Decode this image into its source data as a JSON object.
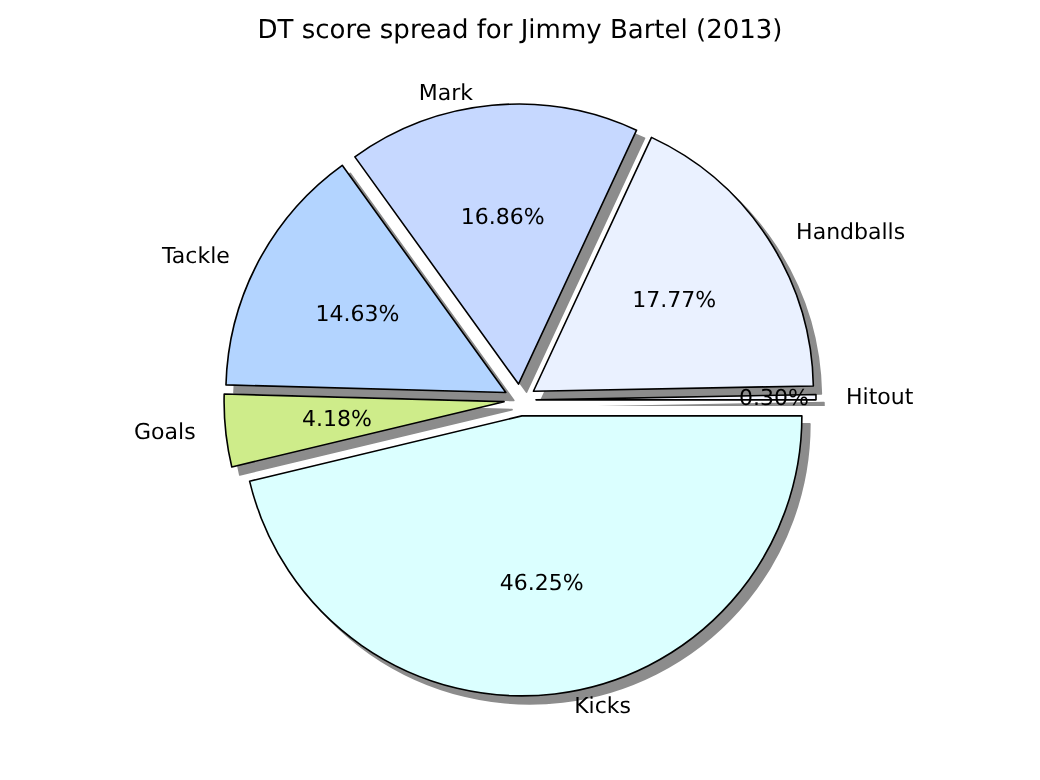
{
  "chart_data": {
    "type": "pie",
    "title": "DT score spread for Jimmy Bartel (2013)",
    "categories": [
      "Hitout",
      "Handballs",
      "Mark",
      "Tackle",
      "Goals",
      "Kicks"
    ],
    "values": [
      0.3,
      17.77,
      16.86,
      14.63,
      4.18,
      46.25
    ],
    "value_labels": [
      "0.30%",
      "17.77%",
      "16.86%",
      "14.63%",
      "4.18%",
      "46.25%"
    ],
    "colors": [
      "#f4f6ff",
      "#eaf1ff",
      "#c6d8ff",
      "#b3d4ff",
      "#ceec8a",
      "#dbffff"
    ],
    "legend": false
  }
}
